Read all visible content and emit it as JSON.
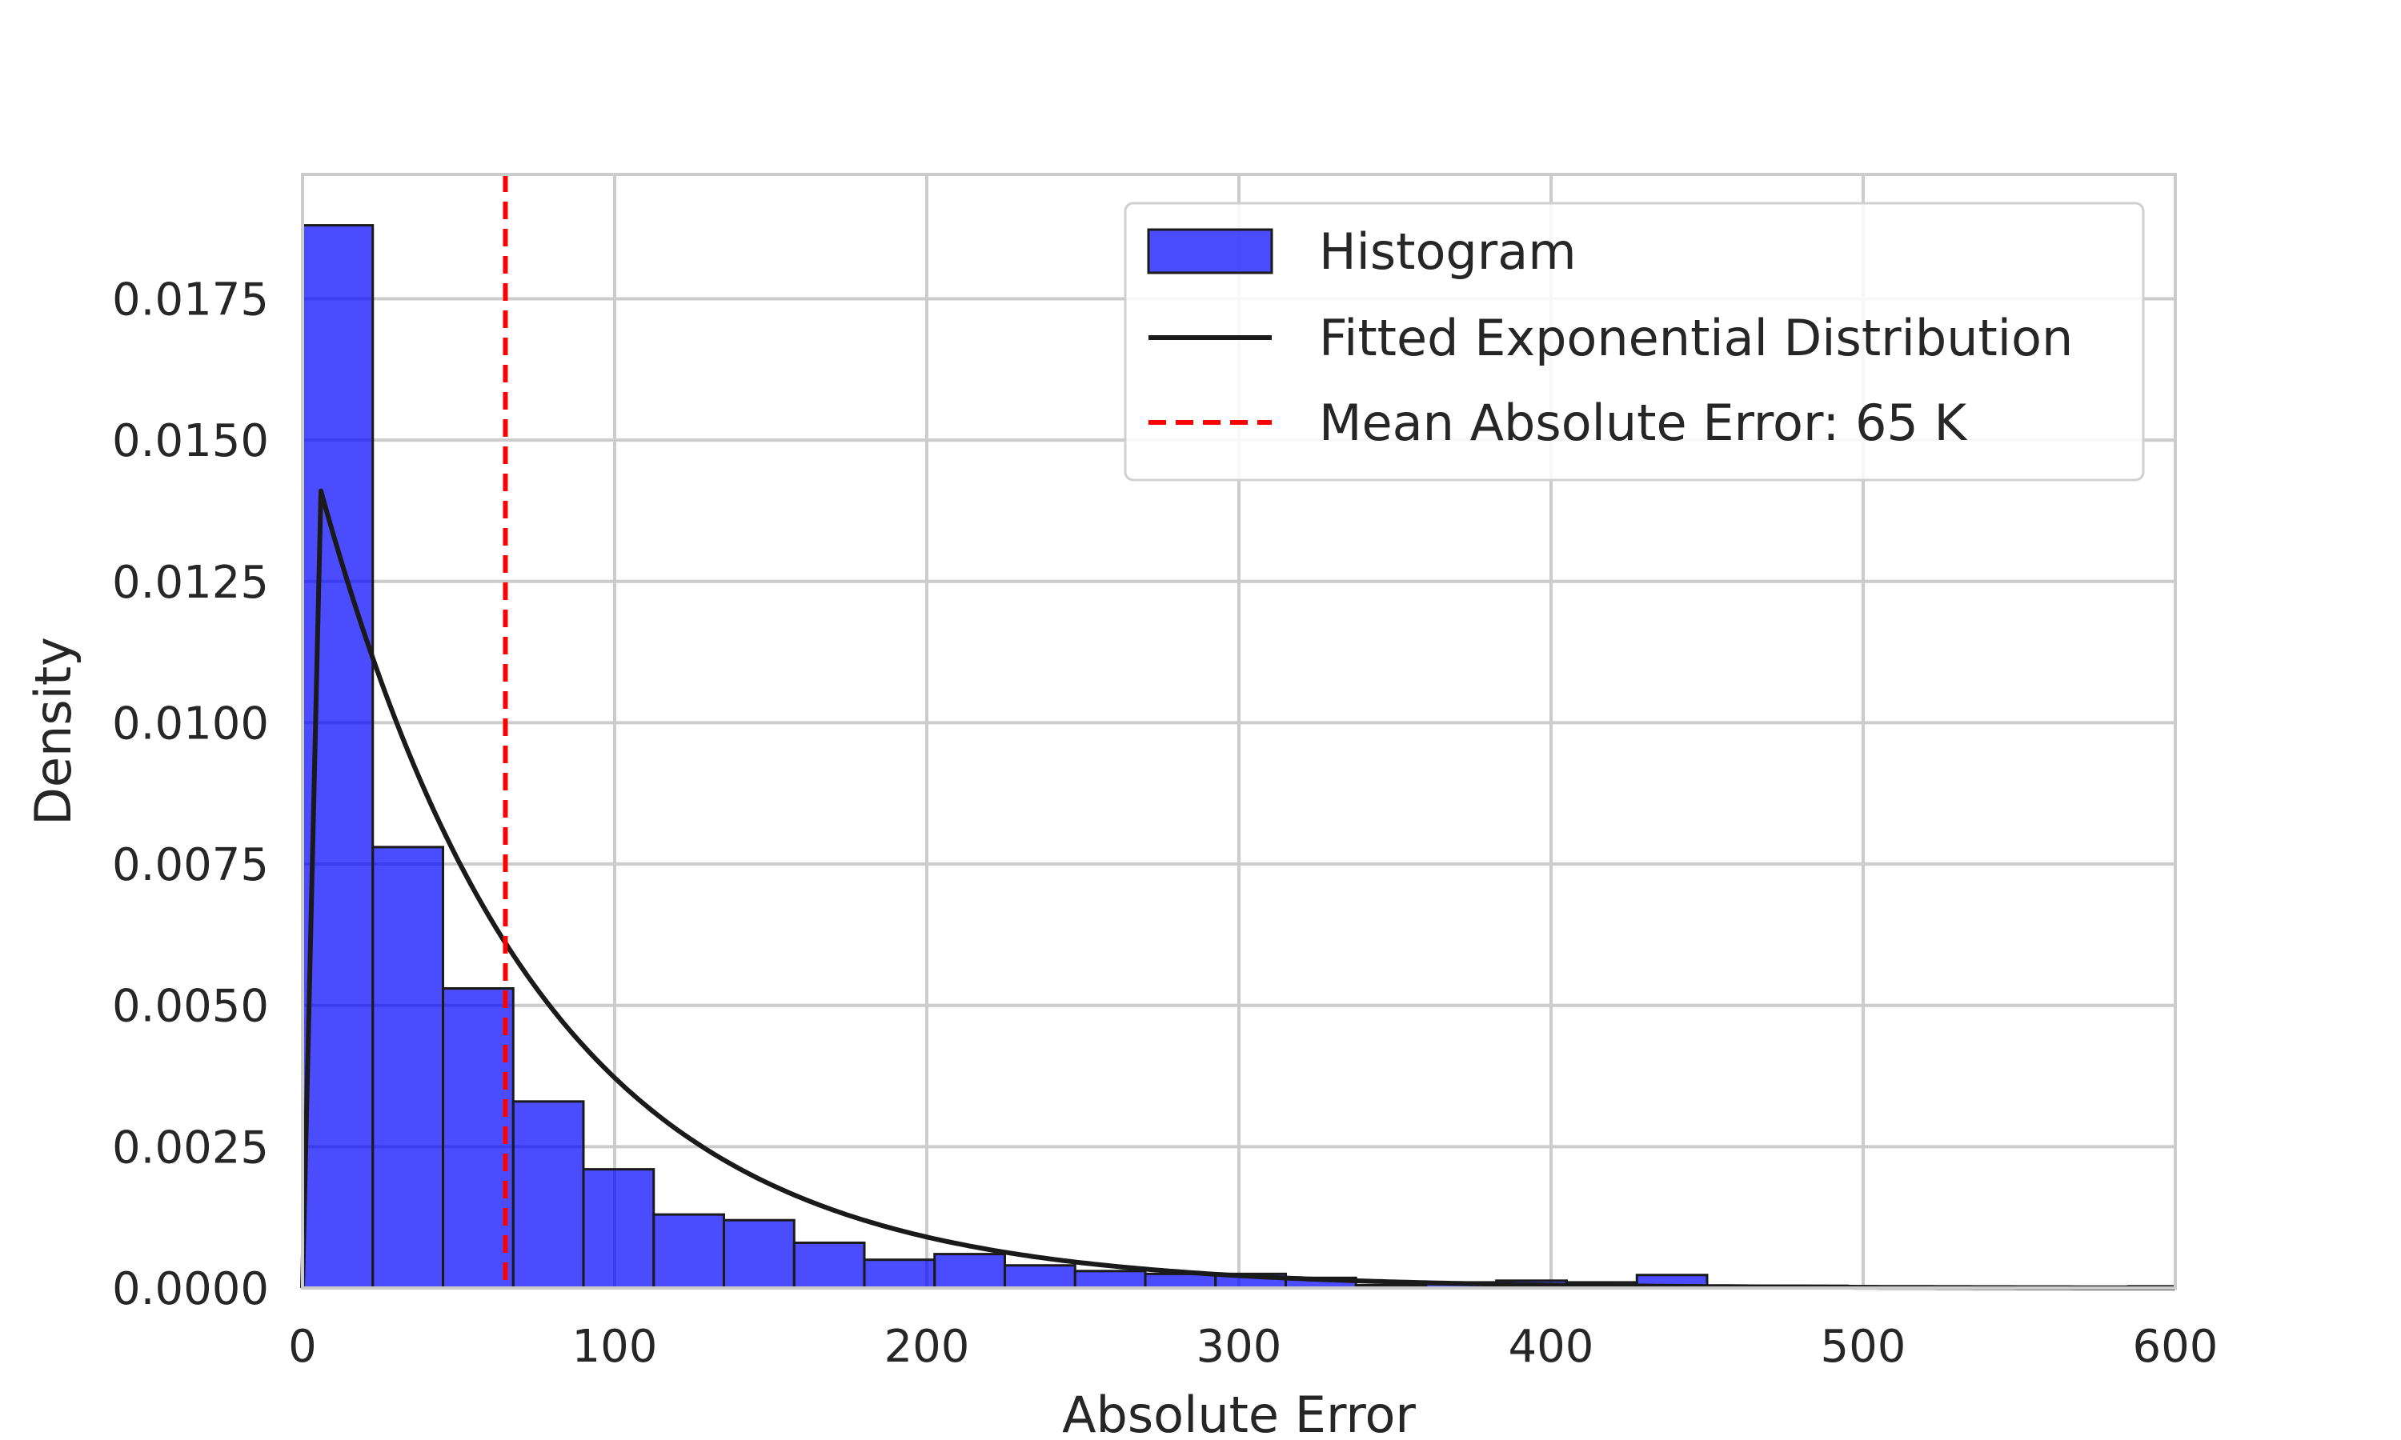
{
  "chart_data": {
    "type": "bar",
    "xlabel": "Absolute Error",
    "ylabel": "Density",
    "xlim": [
      0,
      600
    ],
    "ylim": [
      0,
      0.0197
    ],
    "grid": true,
    "legend_placement": "top-right",
    "x_ticks": [
      0,
      100,
      200,
      300,
      400,
      500,
      600
    ],
    "y_ticks": [
      0.0,
      0.0025,
      0.005,
      0.0075,
      0.01,
      0.0125,
      0.015,
      0.0175
    ],
    "x_tick_labels": [
      "0",
      "100",
      "200",
      "300",
      "400",
      "500",
      "600"
    ],
    "y_tick_labels": [
      "0.0000",
      "0.0025",
      "0.0050",
      "0.0075",
      "0.0100",
      "0.0125",
      "0.0150",
      "0.0175"
    ],
    "histogram": {
      "name": "Histogram",
      "color": "#0000ff",
      "bin_edges": [
        0,
        22.5,
        45,
        67.5,
        90,
        112.5,
        135,
        157.5,
        180,
        202.5,
        225,
        247.5,
        270,
        292.5,
        315,
        337.5,
        360,
        382.5,
        405,
        427.5,
        450,
        472.5,
        495,
        517.5,
        540,
        562.5,
        585,
        607.5
      ],
      "values": [
        0.0188,
        0.0078,
        0.0053,
        0.0033,
        0.0021,
        0.0013,
        0.0012,
        0.0008,
        0.0005,
        0.0006,
        0.0004,
        0.0003,
        0.00025,
        0.00025,
        0.00018,
        5e-05,
        0.0001,
        0.00013,
        0.0001,
        0.00023,
        4e-05,
        4e-05,
        1e-05,
        2e-05,
        1e-05,
        1e-05,
        3e-05
      ]
    },
    "fitted_curve": {
      "name": "Fitted Exponential Distribution",
      "color": "#1a1a1a",
      "distribution": "exponential",
      "loc": 5.9,
      "scale": 70.6,
      "peak_density": 0.0141
    },
    "mean_line": {
      "name": "Mean Absolute Error: 65 K",
      "color": "#ff0000",
      "x": 65
    }
  }
}
